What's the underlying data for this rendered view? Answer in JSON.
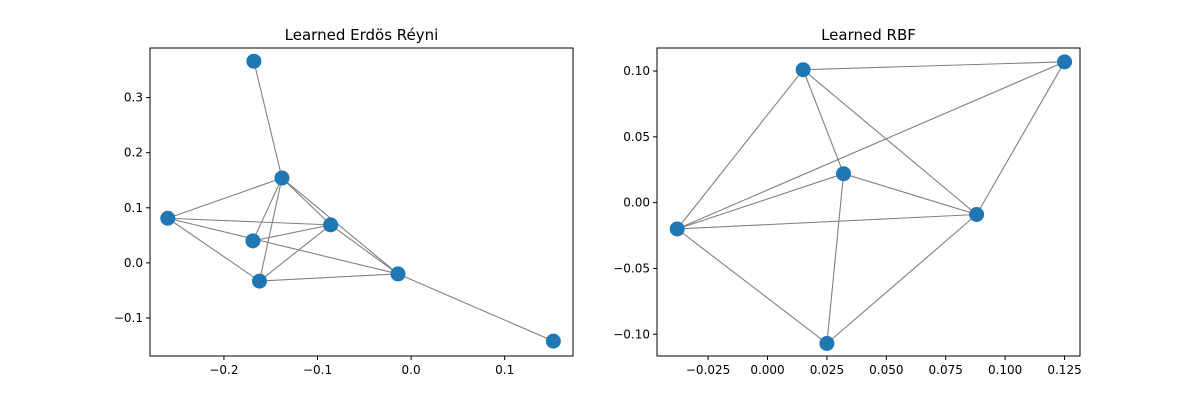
{
  "chart_data": [
    {
      "type": "scatter",
      "subtype": "network-graph",
      "title": "Learned Erdös Réyni",
      "xlabel": "",
      "ylabel": "",
      "xlim": [
        -0.279,
        0.173
      ],
      "ylim": [
        -0.169,
        0.39
      ],
      "xticks": [
        -0.2,
        -0.1,
        0.0,
        0.1
      ],
      "xtick_labels": [
        "−0.2",
        "−0.1",
        "0.0",
        "0.1"
      ],
      "yticks": [
        -0.1,
        0.0,
        0.1,
        0.2,
        0.3
      ],
      "ytick_labels": [
        "−0.1",
        "0.0",
        "0.1",
        "0.2",
        "0.3"
      ],
      "grid": false,
      "node_color": "#1f77b4",
      "edge_color": "#808080",
      "nodes": [
        {
          "x": -0.168,
          "y": 0.366
        },
        {
          "x": -0.138,
          "y": 0.154
        },
        {
          "x": -0.26,
          "y": 0.081
        },
        {
          "x": -0.086,
          "y": 0.069
        },
        {
          "x": -0.169,
          "y": 0.04
        },
        {
          "x": -0.162,
          "y": -0.033
        },
        {
          "x": -0.014,
          "y": -0.02
        },
        {
          "x": 0.152,
          "y": -0.142
        }
      ],
      "edges": [
        [
          0,
          1
        ],
        [
          1,
          2
        ],
        [
          1,
          3
        ],
        [
          1,
          4
        ],
        [
          1,
          5
        ],
        [
          1,
          6
        ],
        [
          2,
          3
        ],
        [
          2,
          5
        ],
        [
          2,
          6
        ],
        [
          3,
          4
        ],
        [
          3,
          5
        ],
        [
          3,
          6
        ],
        [
          5,
          6
        ],
        [
          6,
          7
        ]
      ]
    },
    {
      "type": "scatter",
      "subtype": "network-graph",
      "title": "Learned RBF",
      "xlabel": "",
      "ylabel": "",
      "xlim": [
        -0.0465,
        0.1315
      ],
      "ylim": [
        -0.1165,
        0.1175
      ],
      "xticks": [
        -0.025,
        0.0,
        0.025,
        0.05,
        0.075,
        0.1,
        0.125
      ],
      "xtick_labels": [
        "−0.025",
        "0.000",
        "0.025",
        "0.050",
        "0.075",
        "0.100",
        "0.125"
      ],
      "yticks": [
        -0.1,
        -0.05,
        0.0,
        0.05,
        0.1
      ],
      "ytick_labels": [
        "−0.10",
        "−0.05",
        "0.00",
        "0.05",
        "0.10"
      ],
      "grid": false,
      "node_color": "#1f77b4",
      "edge_color": "#808080",
      "nodes": [
        {
          "x": 0.015,
          "y": 0.101
        },
        {
          "x": 0.125,
          "y": 0.107
        },
        {
          "x": 0.032,
          "y": 0.022
        },
        {
          "x": 0.088,
          "y": -0.009
        },
        {
          "x": -0.038,
          "y": -0.02
        },
        {
          "x": 0.025,
          "y": -0.107
        }
      ],
      "edges": [
        [
          0,
          1
        ],
        [
          0,
          2
        ],
        [
          0,
          3
        ],
        [
          0,
          4
        ],
        [
          1,
          3
        ],
        [
          1,
          4
        ],
        [
          2,
          3
        ],
        [
          2,
          4
        ],
        [
          2,
          5
        ],
        [
          3,
          4
        ],
        [
          3,
          5
        ],
        [
          4,
          5
        ]
      ]
    }
  ]
}
